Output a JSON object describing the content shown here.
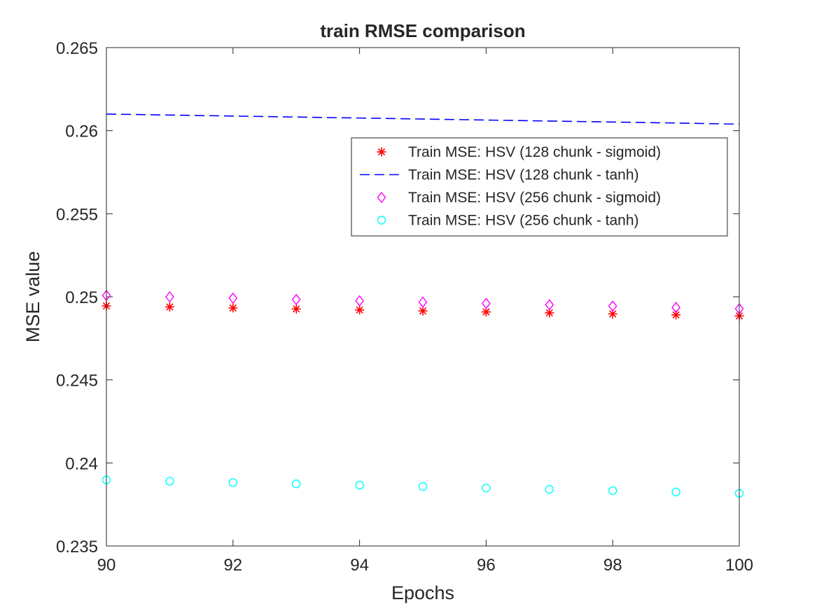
{
  "chart_data": {
    "type": "scatter",
    "title": "train RMSE comparison",
    "xlabel": "Epochs",
    "ylabel": "MSE value",
    "xlim": [
      90,
      100
    ],
    "ylim": [
      0.235,
      0.265
    ],
    "grid": false,
    "legend_position": "top-right",
    "x_ticks": [
      "90",
      "92",
      "94",
      "96",
      "98",
      "100"
    ],
    "y_ticks": [
      "0.235",
      "0.24",
      "0.245",
      "0.25",
      "0.255",
      "0.26",
      "0.265"
    ],
    "x": [
      90,
      91,
      92,
      93,
      94,
      95,
      96,
      97,
      98,
      99,
      100
    ],
    "series": [
      {
        "name": "Train MSE: HSV (128 chunk - sigmoid)",
        "marker": "asterisk",
        "style": "markers",
        "color": "#ff0000",
        "values": [
          0.24945,
          0.24939,
          0.24933,
          0.24927,
          0.24921,
          0.24915,
          0.24909,
          0.24903,
          0.24897,
          0.24891,
          0.24885
        ]
      },
      {
        "name": "Train MSE: HSV (128 chunk - tanh)",
        "marker": "none",
        "style": "dashed-line",
        "color": "#0000ff",
        "values": [
          0.261,
          0.26094,
          0.26088,
          0.26082,
          0.26076,
          0.2607,
          0.26064,
          0.26058,
          0.26052,
          0.26046,
          0.26039
        ]
      },
      {
        "name": "Train MSE: HSV (256 chunk - sigmoid)",
        "marker": "diamond",
        "style": "markers",
        "color": "#ff00ff",
        "values": [
          0.25008,
          0.25,
          0.24992,
          0.24984,
          0.24976,
          0.24968,
          0.2496,
          0.24952,
          0.24944,
          0.24936,
          0.24928
        ]
      },
      {
        "name": "Train MSE: HSV (256 chunk - tanh)",
        "marker": "circle",
        "style": "markers",
        "color": "#00ffff",
        "values": [
          0.23898,
          0.2389,
          0.23882,
          0.23874,
          0.23866,
          0.23858,
          0.23849,
          0.23841,
          0.23833,
          0.23825,
          0.23817
        ]
      }
    ]
  }
}
